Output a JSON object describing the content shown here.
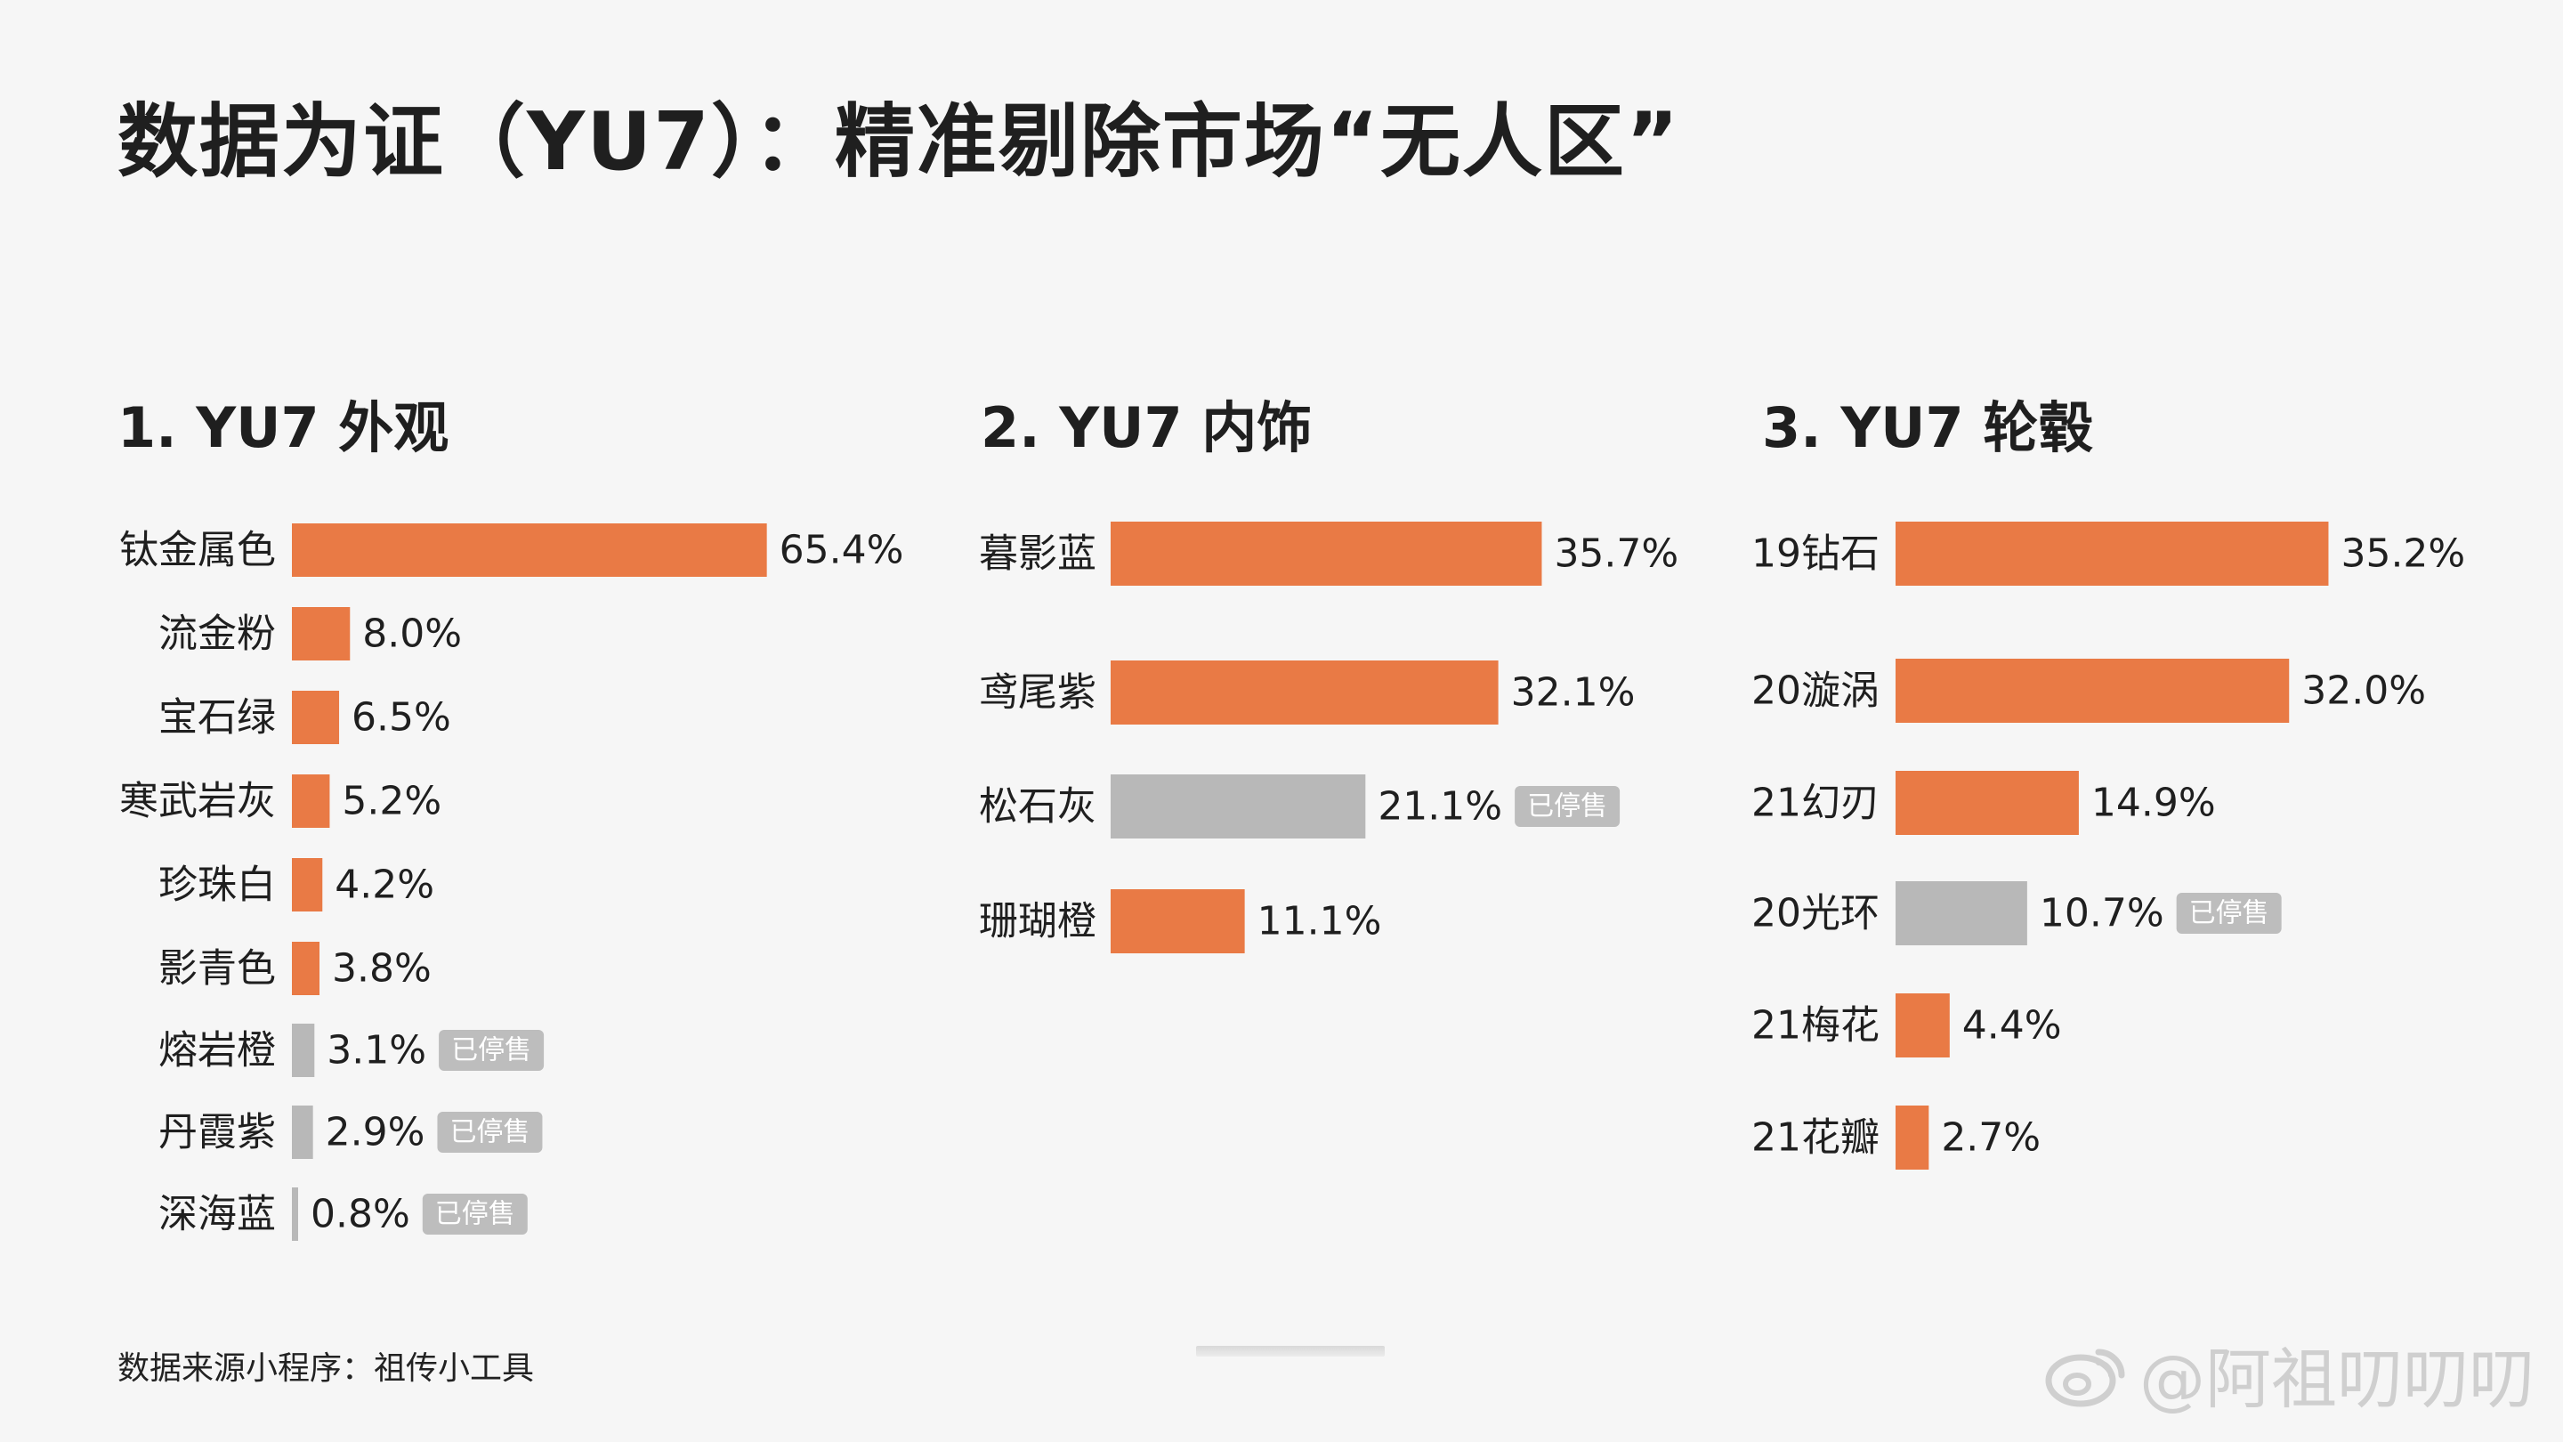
{
  "title": "数据为证（YU7）：精准剔除市场“无人区”",
  "source_note": "数据来源小程序：祖传小工具",
  "watermark": "@阿祖叨叨叨",
  "colors": {
    "active": "#e97a45",
    "discontinued": "#b8b8b8",
    "badge_bg": "#bdbdbd",
    "badge_text": "#ffffff",
    "text": "#1f1f1f"
  },
  "chart_data": [
    {
      "type": "bar",
      "orientation": "horizontal",
      "title": "1. YU7 外观",
      "categories": [
        "钛金属色",
        "流金粉",
        "宝石绿",
        "寒武岩灰",
        "珍珠白",
        "影青色",
        "熔岩橙",
        "丹霞紫",
        "深海蓝"
      ],
      "values": [
        65.4,
        8.0,
        6.5,
        5.2,
        4.2,
        3.8,
        3.1,
        2.9,
        0.8
      ],
      "value_labels": [
        "65.4%",
        "8.0%",
        "6.5%",
        "5.2%",
        "4.2%",
        "3.8%",
        "3.1%",
        "2.9%",
        "0.8%"
      ],
      "status": [
        "active",
        "active",
        "active",
        "active",
        "active",
        "active",
        "discontinued",
        "discontinued",
        "discontinued"
      ],
      "badge": [
        "",
        "",
        "",
        "",
        "",
        "",
        "已停售",
        "已停售",
        "已停售"
      ],
      "unit": "%"
    },
    {
      "type": "bar",
      "orientation": "horizontal",
      "title": "2. YU7 内饰",
      "categories": [
        "暮影蓝",
        "鸢尾紫",
        "松石灰",
        "珊瑚橙"
      ],
      "values": [
        35.7,
        32.1,
        21.1,
        11.1
      ],
      "value_labels": [
        "35.7%",
        "32.1%",
        "21.1%",
        "11.1%"
      ],
      "status": [
        "active",
        "active",
        "discontinued",
        "active"
      ],
      "badge": [
        "",
        "",
        "已停售",
        ""
      ],
      "unit": "%"
    },
    {
      "type": "bar",
      "orientation": "horizontal",
      "title": "3. YU7 轮毂",
      "categories": [
        "19钻石",
        "20漩涡",
        "21幻刃",
        "20光环",
        "21梅花",
        "21花瓣"
      ],
      "values": [
        35.2,
        32.0,
        14.9,
        10.7,
        4.4,
        2.7
      ],
      "value_labels": [
        "35.2%",
        "32.0%",
        "14.9%",
        "10.7%",
        "4.4%",
        "2.7%"
      ],
      "status": [
        "active",
        "active",
        "active",
        "discontinued",
        "active",
        "active"
      ],
      "badge": [
        "",
        "",
        "",
        "已停售",
        "",
        ""
      ],
      "unit": "%"
    }
  ]
}
